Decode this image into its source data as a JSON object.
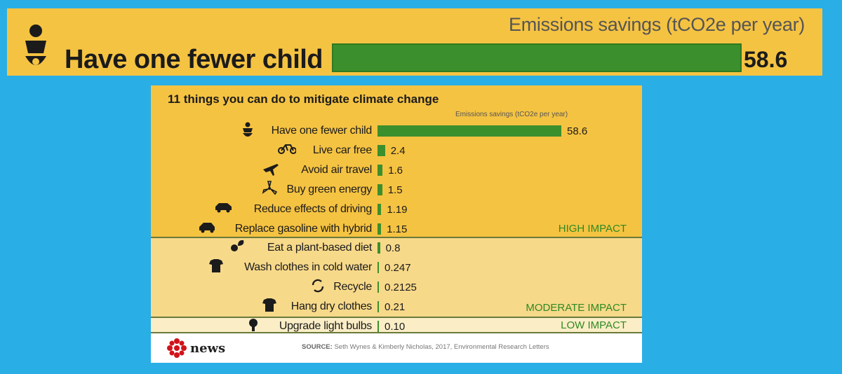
{
  "banner": {
    "unit_label": "Emissions savings (tCO2e per year)",
    "label": "Have one fewer child",
    "value": 58.6,
    "value_text": "58.6",
    "icon": "baby-icon"
  },
  "chart_data": {
    "type": "bar",
    "orientation": "horizontal",
    "title": "11 things you can do to mitigate climate change",
    "xlabel": "Emissions savings (tCO2e per year)",
    "xlim": [
      0,
      58.6
    ],
    "grid": false,
    "bar_color": "#3b8f2c",
    "categories": [
      "Have one fewer child",
      "Live car free",
      "Avoid air travel",
      "Buy green energy",
      "Reduce effects of driving",
      "Replace gasoline with hybrid",
      "Eat a plant-based diet",
      "Wash clothes in cold water",
      "Recycle",
      "Hang dry clothes",
      "Upgrade light bulbs"
    ],
    "values": [
      58.6,
      2.4,
      1.6,
      1.5,
      1.19,
      1.15,
      0.8,
      0.247,
      0.2125,
      0.21,
      0.1
    ],
    "value_labels": [
      "58.6",
      "2.4",
      "1.6",
      "1.5",
      "1.19",
      "1.15",
      "0.8",
      "0.247",
      "0.2125",
      "0.21",
      "0.10"
    ],
    "icons": [
      "baby-icon",
      "bicycle-icon",
      "airplane-icon",
      "wind-turbine-icon",
      "car-icon",
      "hybrid-car-icon",
      "plant-icon",
      "tshirt-icon",
      "recycle-icon",
      "tshirt-icon",
      "lightbulb-icon"
    ],
    "groups": [
      {
        "label": "HIGH IMPACT",
        "count": 6,
        "color": "#f5c342"
      },
      {
        "label": "MODERATE IMPACT",
        "count": 4,
        "color": "#f7d98a"
      },
      {
        "label": "LOW IMPACT",
        "count": 1,
        "color": "#fbeec7"
      }
    ]
  },
  "footer": {
    "logo": "news",
    "source_label": "SOURCE:",
    "source_text": "Seth Wynes & Kimberly Nicholas, 2017, Environmental Research Letters"
  }
}
